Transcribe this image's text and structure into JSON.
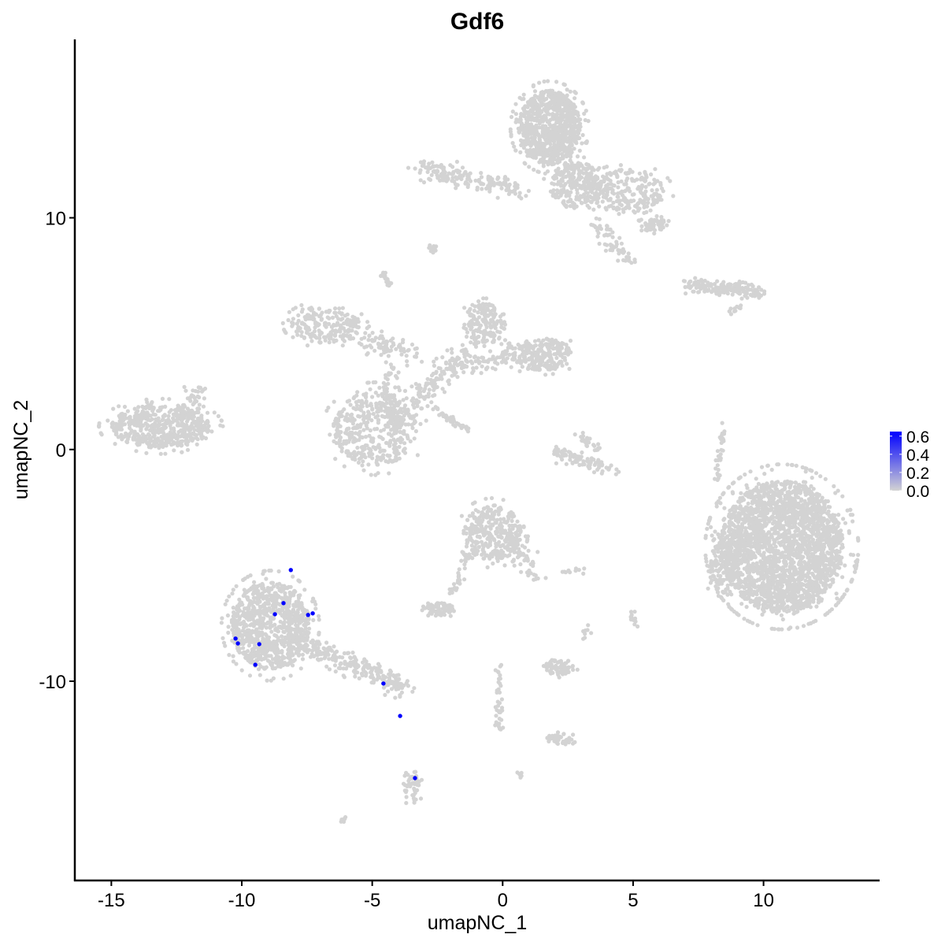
{
  "chart_data": {
    "type": "scatter",
    "title": "Gdf6",
    "xlabel": "umapNC_1",
    "ylabel": "umapNC_2",
    "xlim": [
      -16.4,
      14.45
    ],
    "ylim": [
      -18.6,
      17.7
    ],
    "x_ticks": [
      -15,
      -10,
      -5,
      0,
      5,
      10
    ],
    "x_tick_labels": [
      "-15",
      "-10",
      "-5",
      "0",
      "5",
      "10"
    ],
    "y_ticks": [
      -10,
      0,
      10
    ],
    "y_tick_labels": [
      "-10",
      "0",
      "10"
    ],
    "grid": false,
    "legend": {
      "placement": "right",
      "type": "colorbar",
      "ticks": [
        0.0,
        0.2,
        0.4,
        0.6
      ],
      "tick_labels": [
        "0.0",
        "0.2",
        "0.4",
        "0.6"
      ],
      "range": [
        0,
        0.65
      ],
      "low_color": "#d3d3d3",
      "high_color": "#0000ff"
    },
    "gray_point_clusters": [
      {
        "shape": "ellipse",
        "c": [
          -13.1,
          1.0
        ],
        "r": [
          1.9,
          0.95
        ],
        "n": 520
      },
      {
        "shape": "segment",
        "from": [
          -12.2,
          1.6
        ],
        "to": [
          -11.5,
          2.7
        ],
        "w": 0.4,
        "n": 40
      },
      {
        "shape": "ellipse",
        "c": [
          1.8,
          13.9
        ],
        "r": [
          1.2,
          1.6
        ],
        "n": 900
      },
      {
        "shape": "ellipse",
        "c": [
          2.8,
          11.4
        ],
        "r": [
          1.0,
          1.0
        ],
        "n": 250
      },
      {
        "shape": "ellipse",
        "c": [
          4.8,
          11.1
        ],
        "r": [
          1.4,
          1.0
        ],
        "n": 220
      },
      {
        "shape": "ellipse",
        "c": [
          5.8,
          9.7
        ],
        "r": [
          0.5,
          0.3
        ],
        "n": 60
      },
      {
        "shape": "segment",
        "from": [
          -3.2,
          12.2
        ],
        "to": [
          0.8,
          11.2
        ],
        "w": 0.45,
        "n": 170
      },
      {
        "shape": "segment",
        "from": [
          3.5,
          9.8
        ],
        "to": [
          4.8,
          8.3
        ],
        "w": 0.4,
        "n": 60
      },
      {
        "shape": "ellipse",
        "c": [
          10.7,
          -4.2
        ],
        "r": [
          2.35,
          2.85
        ],
        "n": 2600
      },
      {
        "shape": "ellipse",
        "c": [
          8.4,
          -5.2
        ],
        "r": [
          0.5,
          1.2
        ],
        "n": 120
      },
      {
        "shape": "ellipse",
        "c": [
          -4.9,
          0.9
        ],
        "r": [
          1.6,
          1.6
        ],
        "n": 430
      },
      {
        "shape": "ellipse",
        "c": [
          -6.8,
          5.4
        ],
        "r": [
          1.3,
          0.8
        ],
        "n": 200
      },
      {
        "shape": "segment",
        "from": [
          -5.6,
          4.8
        ],
        "to": [
          -3.5,
          4.2
        ],
        "w": 0.5,
        "n": 90
      },
      {
        "shape": "segment",
        "from": [
          -4.3,
          3.5
        ],
        "to": [
          -4.2,
          0.8
        ],
        "w": 0.35,
        "n": 80
      },
      {
        "shape": "segment",
        "from": [
          -3.6,
          1.8
        ],
        "to": [
          -1.2,
          4.5
        ],
        "w": 0.5,
        "n": 130
      },
      {
        "shape": "segment",
        "from": [
          -1.8,
          3.5
        ],
        "to": [
          1.4,
          4.3
        ],
        "w": 0.4,
        "n": 90
      },
      {
        "shape": "ellipse",
        "c": [
          -0.7,
          5.4
        ],
        "r": [
          0.8,
          0.9
        ],
        "n": 170
      },
      {
        "shape": "ellipse",
        "c": [
          1.5,
          4.1
        ],
        "r": [
          1.2,
          0.7
        ],
        "n": 230
      },
      {
        "shape": "segment",
        "from": [
          -2.6,
          1.8
        ],
        "to": [
          -1.3,
          0.8
        ],
        "w": 0.15,
        "n": 40
      },
      {
        "shape": "segment",
        "from": [
          -2.6,
          8.5
        ],
        "to": [
          -2.8,
          8.9
        ],
        "w": 0.15,
        "n": 15
      },
      {
        "shape": "segment",
        "from": [
          -4.3,
          7.0
        ],
        "to": [
          -4.5,
          7.6
        ],
        "w": 0.15,
        "n": 20
      },
      {
        "shape": "ellipse",
        "c": [
          -0.4,
          -3.6
        ],
        "r": [
          1.1,
          1.2
        ],
        "n": 330
      },
      {
        "shape": "segment",
        "from": [
          0.3,
          -3.6
        ],
        "to": [
          1.3,
          -5.5
        ],
        "w": 0.35,
        "n": 60
      },
      {
        "shape": "segment",
        "from": [
          -1.2,
          -4.4
        ],
        "to": [
          -2.0,
          -6.2
        ],
        "w": 0.2,
        "n": 40
      },
      {
        "shape": "segment",
        "from": [
          2.1,
          -0.2
        ],
        "to": [
          4.2,
          -0.9
        ],
        "w": 0.35,
        "n": 90
      },
      {
        "shape": "segment",
        "from": [
          3.0,
          0.6
        ],
        "to": [
          3.6,
          0.0
        ],
        "w": 0.2,
        "n": 25
      },
      {
        "shape": "segment",
        "from": [
          7.1,
          7.1
        ],
        "to": [
          9.9,
          6.8
        ],
        "w": 0.3,
        "n": 170
      },
      {
        "shape": "segment",
        "from": [
          9.2,
          6.3
        ],
        "to": [
          8.6,
          5.8
        ],
        "w": 0.12,
        "n": 12
      },
      {
        "shape": "ellipse",
        "c": [
          -2.4,
          -6.9
        ],
        "r": [
          0.55,
          0.28
        ],
        "n": 70
      },
      {
        "shape": "ellipse",
        "c": [
          2.2,
          -9.4
        ],
        "r": [
          0.55,
          0.35
        ],
        "n": 70
      },
      {
        "shape": "ellipse",
        "c": [
          2.2,
          -12.5
        ],
        "r": [
          0.5,
          0.25
        ],
        "n": 40
      },
      {
        "shape": "segment",
        "from": [
          -0.2,
          -9.2
        ],
        "to": [
          -0.1,
          -12.2
        ],
        "w": 0.15,
        "n": 40
      },
      {
        "shape": "ellipse",
        "c": [
          -3.45,
          -14.6
        ],
        "r": [
          0.3,
          0.7
        ],
        "n": 50
      },
      {
        "shape": "ellipse",
        "c": [
          -8.9,
          -7.6
        ],
        "r": [
          1.5,
          1.9
        ],
        "n": 900
      },
      {
        "shape": "segment",
        "from": [
          -8.0,
          -8.2
        ],
        "to": [
          -3.7,
          -10.3
        ],
        "w": 0.45,
        "n": 260
      },
      {
        "shape": "segment",
        "from": [
          8.2,
          -1.3
        ],
        "to": [
          8.5,
          1.2
        ],
        "w": 0.12,
        "n": 30
      },
      {
        "shape": "segment",
        "from": [
          4.9,
          -6.9
        ],
        "to": [
          5.1,
          -7.6
        ],
        "w": 0.12,
        "n": 12
      },
      {
        "shape": "segment",
        "from": [
          3.1,
          -5.2
        ],
        "to": [
          2.2,
          -5.3
        ],
        "w": 0.1,
        "n": 10
      },
      {
        "shape": "segment",
        "from": [
          3.3,
          -7.6
        ],
        "to": [
          3.1,
          -8.2
        ],
        "w": 0.1,
        "n": 8
      },
      {
        "shape": "segment",
        "from": [
          -6.2,
          -16.1
        ],
        "to": [
          -6.0,
          -15.9
        ],
        "w": 0.1,
        "n": 8
      },
      {
        "shape": "segment",
        "from": [
          0.5,
          -13.9
        ],
        "to": [
          0.7,
          -14.1
        ],
        "w": 0.1,
        "n": 6
      }
    ],
    "expressing_points": [
      {
        "x": -8.12,
        "y": -5.2,
        "value": 0.65
      },
      {
        "x": -8.4,
        "y": -6.63,
        "value": 0.65
      },
      {
        "x": -8.73,
        "y": -7.11,
        "value": 0.65
      },
      {
        "x": -7.46,
        "y": -7.14,
        "value": 0.65
      },
      {
        "x": -7.28,
        "y": -7.07,
        "value": 0.65
      },
      {
        "x": -10.24,
        "y": -8.16,
        "value": 0.65
      },
      {
        "x": -10.15,
        "y": -8.37,
        "value": 0.65
      },
      {
        "x": -9.33,
        "y": -8.4,
        "value": 0.65
      },
      {
        "x": -9.48,
        "y": -9.29,
        "value": 0.65
      },
      {
        "x": -4.57,
        "y": -10.1,
        "value": 0.65
      },
      {
        "x": -3.93,
        "y": -11.5,
        "value": 0.65
      },
      {
        "x": -3.36,
        "y": -14.18,
        "value": 0.65
      }
    ]
  }
}
